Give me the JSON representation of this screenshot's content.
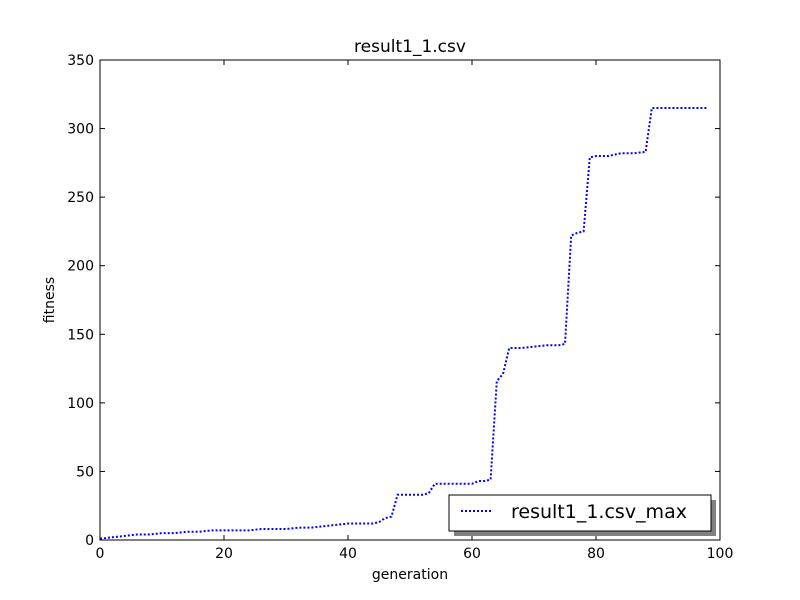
{
  "chart_data": {
    "type": "line",
    "title": "result1_1.csv",
    "xlabel": "generation",
    "ylabel": "fitness",
    "xlim": [
      0,
      100
    ],
    "ylim": [
      0,
      350
    ],
    "xticks": [
      0,
      20,
      40,
      60,
      80,
      100
    ],
    "yticks": [
      0,
      50,
      100,
      150,
      200,
      250,
      300,
      350
    ],
    "grid": false,
    "legend_position": "lower-right",
    "series": [
      {
        "name": "result1_1.csv_max",
        "color": "#0000ff",
        "line_style": "dotted",
        "points": [
          [
            0,
            1
          ],
          [
            2,
            2
          ],
          [
            4,
            3
          ],
          [
            6,
            4
          ],
          [
            8,
            4
          ],
          [
            10,
            5
          ],
          [
            12,
            5
          ],
          [
            14,
            6
          ],
          [
            16,
            6
          ],
          [
            18,
            7
          ],
          [
            20,
            7
          ],
          [
            22,
            7
          ],
          [
            24,
            7
          ],
          [
            26,
            8
          ],
          [
            28,
            8
          ],
          [
            30,
            8
          ],
          [
            32,
            9
          ],
          [
            34,
            9
          ],
          [
            36,
            10
          ],
          [
            38,
            11
          ],
          [
            40,
            12
          ],
          [
            42,
            12
          ],
          [
            44,
            12
          ],
          [
            45,
            13
          ],
          [
            46,
            16
          ],
          [
            47,
            17
          ],
          [
            48,
            33
          ],
          [
            50,
            33
          ],
          [
            52,
            33
          ],
          [
            53,
            34
          ],
          [
            54,
            41
          ],
          [
            56,
            41
          ],
          [
            58,
            41
          ],
          [
            60,
            41
          ],
          [
            61,
            43
          ],
          [
            62,
            43
          ],
          [
            63,
            44
          ],
          [
            64,
            116
          ],
          [
            65,
            121
          ],
          [
            66,
            140
          ],
          [
            68,
            140
          ],
          [
            70,
            141
          ],
          [
            72,
            142
          ],
          [
            74,
            142
          ],
          [
            75,
            143
          ],
          [
            76,
            222
          ],
          [
            77,
            224
          ],
          [
            78,
            225
          ],
          [
            79,
            279
          ],
          [
            80,
            280
          ],
          [
            82,
            280
          ],
          [
            84,
            282
          ],
          [
            86,
            282
          ],
          [
            88,
            283
          ],
          [
            89,
            315
          ],
          [
            90,
            315
          ],
          [
            92,
            315
          ],
          [
            94,
            315
          ],
          [
            96,
            315
          ],
          [
            98,
            315
          ]
        ]
      }
    ]
  }
}
